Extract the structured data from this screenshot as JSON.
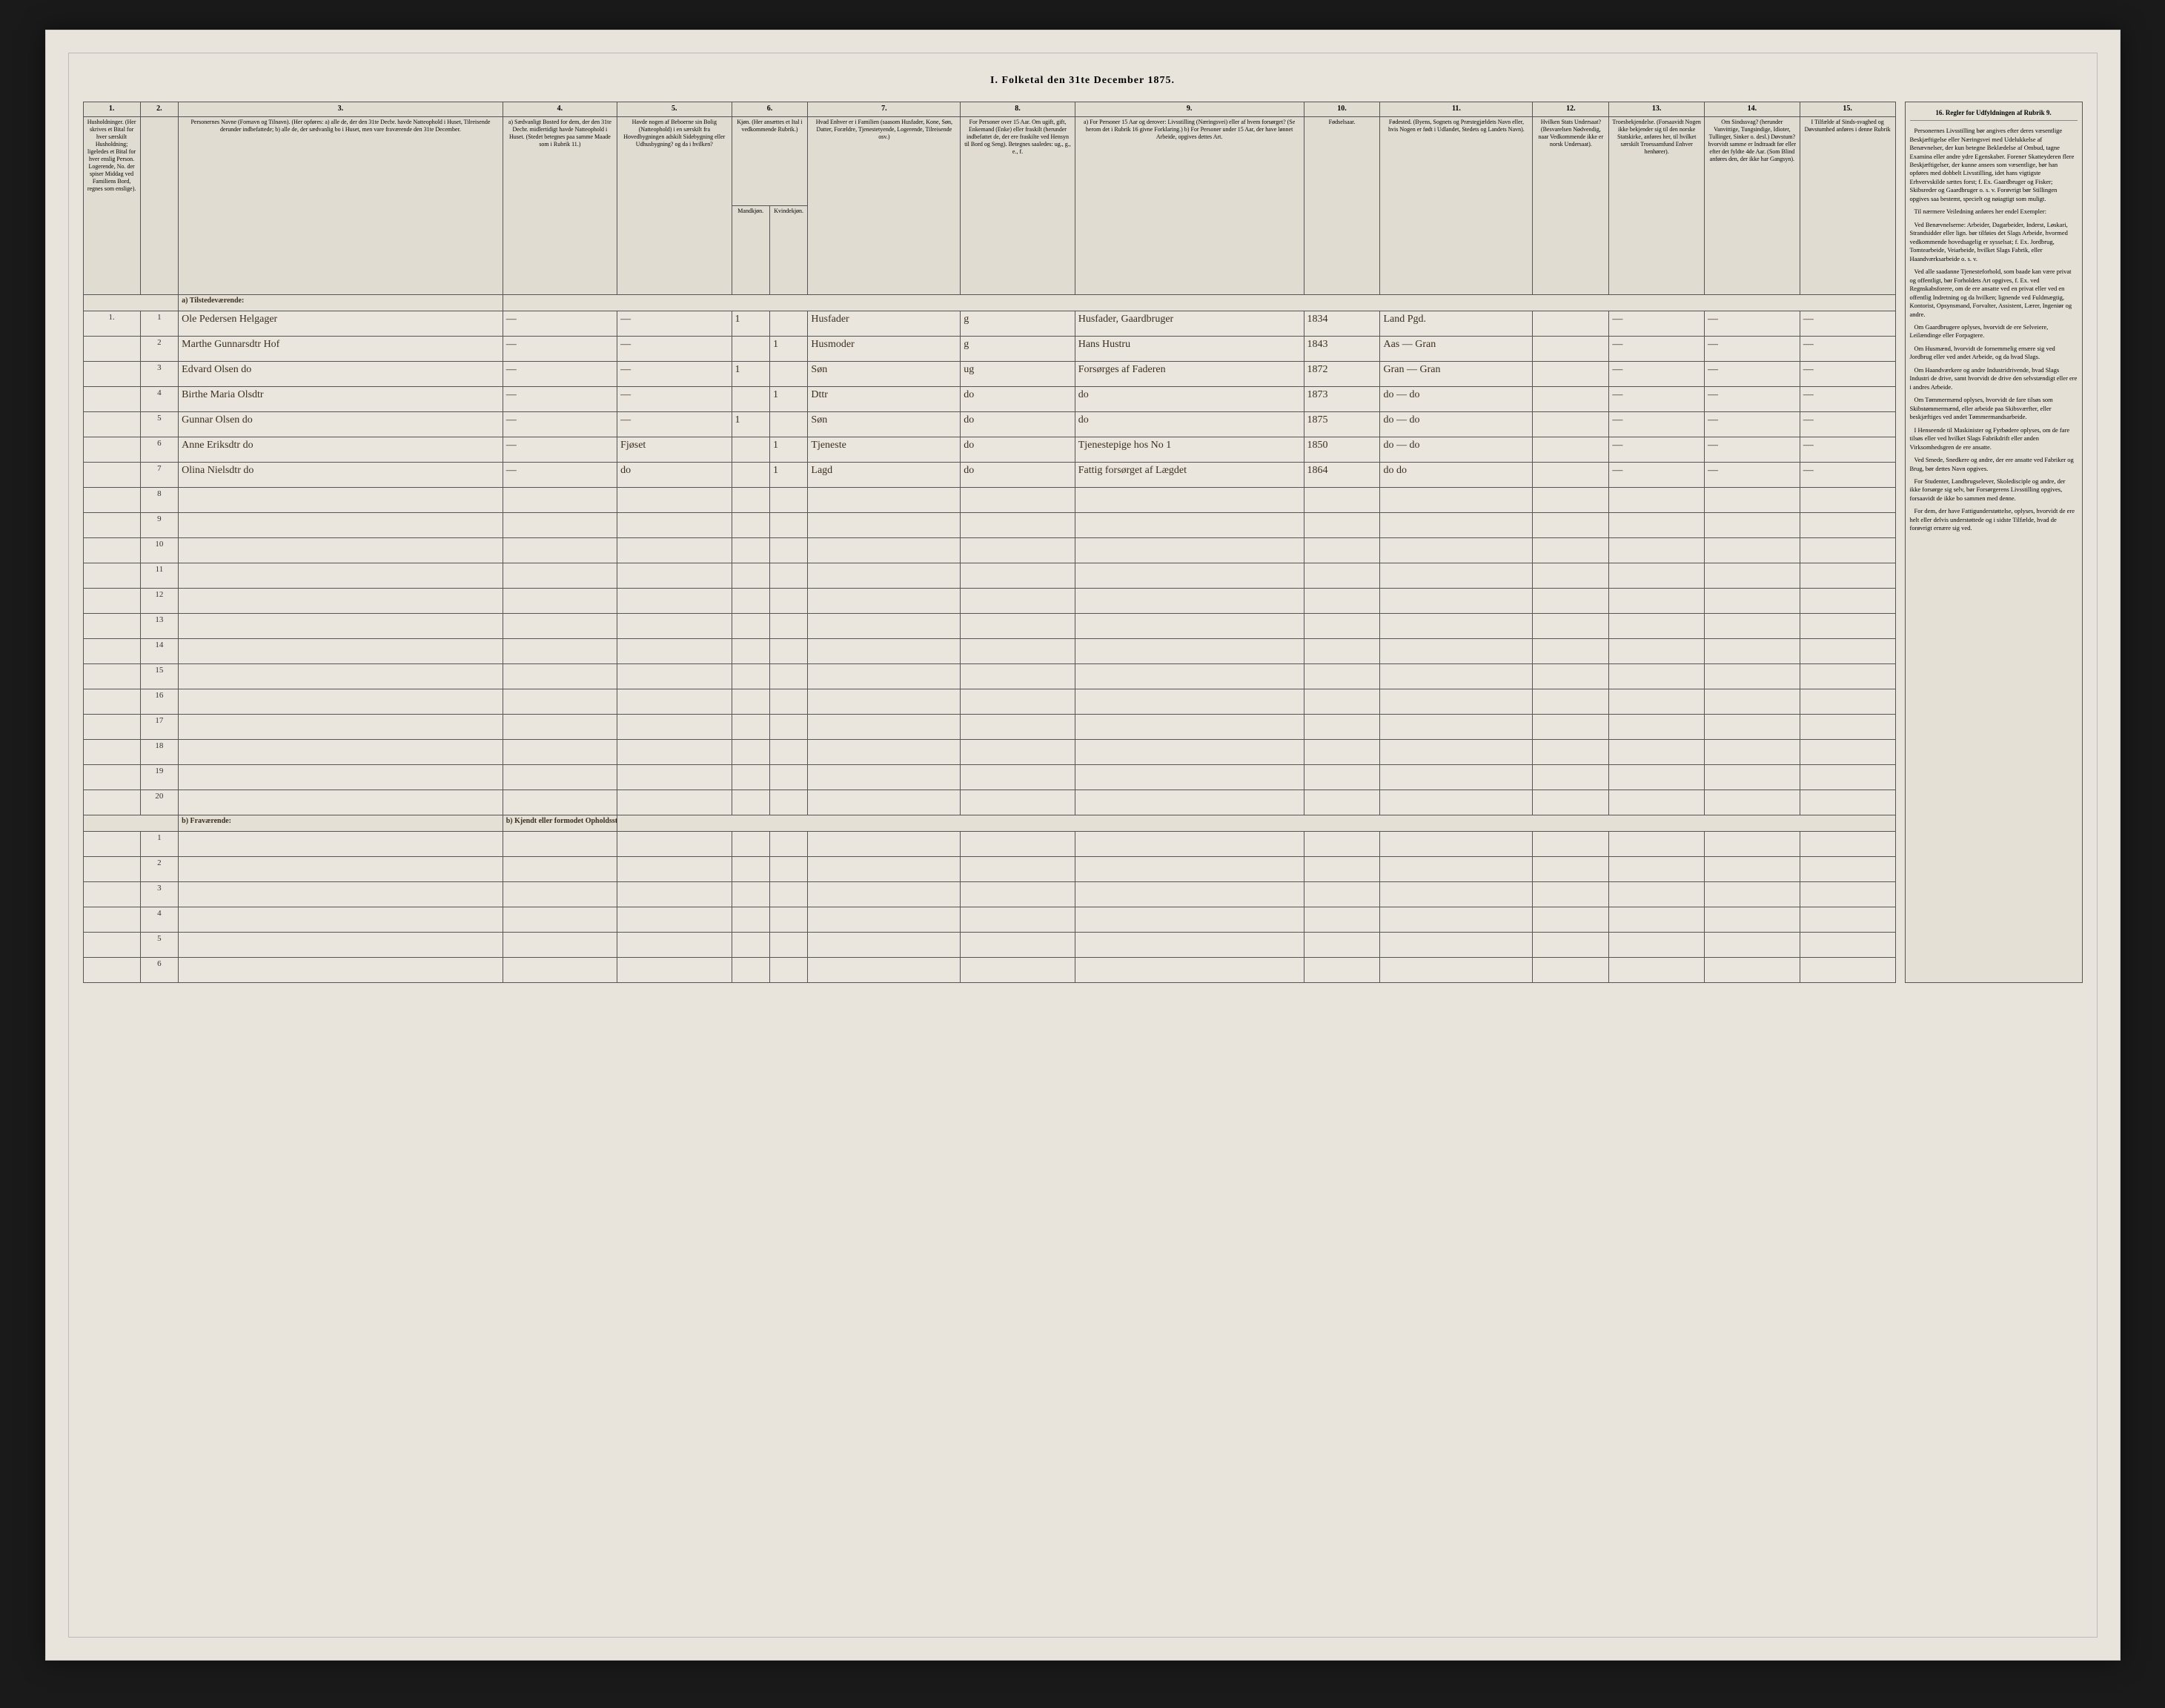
{
  "title": "I. Folketal den 31te December 1875.",
  "columns_numbers": [
    "1.",
    "2.",
    "3.",
    "4.",
    "5.",
    "6.",
    "7.",
    "8.",
    "9.",
    "10.",
    "11.",
    "12.",
    "13.",
    "14.",
    "15."
  ],
  "columns_headers": {
    "c1": "Husholdninger. (Her skrives et Bital for hver særskilt Husholdning; ligeledes et Bital for hver enslig Person. Logerende, No. der spiser Middag ved Familiens Bord, regnes som enslige).",
    "c2": "",
    "c3": "Personernes Navne (Fornavn og Tilnavn). (Her opføres: a) alle de, der den 31te Decbr. havde Natteophold i Huset, Tilreisende derunder indbefattede; b) alle de, der sædvanlig bo i Huset, men vare fraværende den 31te December.",
    "c4": "a) Sædvanligt Bosted for dem, der den 31te Decbr. midlertidigt havde Natteophold i Huset. (Stedet betegnes paa samme Maade som i Rubrik 11.)",
    "c5": "Havde nogen af Beboerne sin Bolig (Natteophold) i en særskilt fra Hovedbygningen adskilt Sidebygning eller Udhusbygning? og da i hvilken?",
    "c6": "Kjøn. (Her ansættes et Ital i vedkommende Rubrik.)",
    "c6a": "Mandkjøn.",
    "c6b": "Kvindekjøn.",
    "c7": "Hvad Enhver er i Familien (saasom Husfader, Kone, Søn, Datter, Forældre, Tjenestetyende, Logerende, Tilreisende osv.)",
    "c8": "For Personer over 15 Aar. Om ugift, gift, Enkemand (Enke) eller fraskilt (herunder indbefattet de, der ere fraskilte ved Hensyn til Bord og Seng). Betegnes saaledes: ug., g., e., f.",
    "c9": "a) For Personer 15 Aar og derover: Livsstilling (Næringsvei) eller af hvem forsørget? (Se herom det i Rubrik 16 givne Forklaring.) b) For Personer under 15 Aar, der have lønnet Arbeide, opgives dettes Art.",
    "c10": "Fødselsaar.",
    "c11": "Fødested. (Byens, Sognets og Præstegjældets Navn eller, hvis Nogen er født i Udlandet, Stedets og Landets Navn).",
    "c12": "Hvilken Stats Undersaat? (Besvarelsen Nødvendig, naar Vedkommende ikke er norsk Undersaat).",
    "c13": "Troesbekjendelse. (Forsaavidt Nogen ikke bekjender sig til den norske Statskirke, anføres her, til hvilket særskilt Troessamfund Enhver henhører).",
    "c14": "Om Sindssvag? (herunder Vanvittige, Tungsindige, Idioter, Tullinger, Sinker o. desl.) Døvstum? hvorvidt samme er Indtraadt før eller efter det fyldte 4de Aar. (Som Blind anføres den, der ikke har Gangsyn).",
    "c15": "I Tilfælde af Sinds-svaghed og Døvstumhed anføres i denne Rubrik"
  },
  "sidebar_title": "16. Regler for Udfyldningen af Rubrik 9.",
  "sidebar_paragraphs": [
    "Personernes Livsstilling bør angives efter deres væsentlige Beskjæftigelse eller Næringsvei med Udelukkelse af Benævnelser, der kun betegne Beklædelse af Ombud, tagne Examina eller andre ydre Egenskaber. Forener Skatteyderen flere Beskjæftigelser, der kunne ansees som væsentlige, bør han opføres med dobbelt Livsstilling, idet hans vigtigste Erhvervskilde sættes forst; f. Ex. Gaardbruger og Fisker; Skibsreder og Gaardbruger o. s. v. Forøvrigt bør Stillingen opgives saa bestemt, specielt og nøiagtigt som muligt.",
    "Til nærmere Veiledning anføres her endel Exempler:",
    "Ved Benævnelserne: Arbeider, Dagarbeider, Inderst, Løskari, Strandsidder eller lign. bør tilføies det Slags Arbeide, hvormed vedkommende hovedsagelig er sysselsat; f. Ex. Jordbrug, Tomtearbeide, Veiarbeide, hvilket Slags Fabrik, eller Haandværksarbeide o. s. v.",
    "Ved alle saadanne Tjenesteforhold, som baade kan være privat og offentligt, bør Forholdets Art opgives, f. Ex. ved Regnskabsforere, om de ere ansatte ved en privat eller ved en offentlig Indretning og da hvilken; lignende ved Fuldmægtig, Kontorist, Opsynsmand, Forvalter, Assistent, Lærer, Ingeniør og andre.",
    "Om Gaardbrugere oplyses, hvorvidt de ere Selveiere, Leilændinge eller Forpagtere.",
    "Om Husmænd, hvorvidt de fornemmelig ernære sig ved Jordbrug eller ved andet Arbeide, og da hvad Slags.",
    "Om Haandværkere og andre Industridrivende, hvad Slags Industri de drive, samt hvorvidt de drive den selvstændigt eller ere i andres Arbeide.",
    "Om Tømmermænd oplyses, hvorvidt de fare tilsøs som Skibstømmermænd, eller arbeide paa Skibsværfter, eller beskjæftiges ved andet Tømmermandsarbeide.",
    "I Henseende til Maskinister og Fyrbødere oplyses, om de fare tilsøs eller ved hvilket Slags Fabrikdrift eller anden Virksomhedsgren de ere ansatte.",
    "Ved Smede, Snedkere og andre, der ere ansatte ved Fabriker og Brug, bør dettes Navn opgives.",
    "For Studenter, Landbrugselever, Skoledisciple og andre, der ikke forsørge sig selv, bør Forsørgerens Livsstilling opgives, forsaavidt de ikke bo sammen med denne.",
    "For dem, der have Fattigunderstøttelse, oplyses, hvorvidt de ere helt eller delvis understøttede og i sidste Tilfælde, hvad de forøvrigt ernære sig ved."
  ],
  "section_a": "a) Tilstedeværende:",
  "section_b": "b) Fraværende:",
  "section_b_col4": "b) Kjendt eller formodet Opholdssted.",
  "rows_a": [
    {
      "n1": "1.",
      "n2": "1",
      "name": "Ole Pedersen Helgager",
      "c4": "—",
      "c5": "—",
      "m": "1",
      "k": "",
      "rel": "Husfader",
      "ms": "g",
      "occ": "Husfader, Gaardbruger",
      "yr": "1834",
      "bp": "Land Pgd.",
      "st": "",
      "tr": "—",
      "s": "—",
      "d": "—"
    },
    {
      "n1": "",
      "n2": "2",
      "name": "Marthe Gunnarsdtr Hof",
      "c4": "—",
      "c5": "—",
      "m": "",
      "k": "1",
      "rel": "Husmoder",
      "ms": "g",
      "occ": "Hans Hustru",
      "yr": "1843",
      "bp": "Aas — Gran",
      "st": "",
      "tr": "—",
      "s": "—",
      "d": "—"
    },
    {
      "n1": "",
      "n2": "3",
      "name": "Edvard Olsen          do",
      "c4": "—",
      "c5": "—",
      "m": "1",
      "k": "",
      "rel": "Søn",
      "ms": "ug",
      "occ": "Forsørges af Faderen",
      "yr": "1872",
      "bp": "Gran — Gran",
      "st": "",
      "tr": "—",
      "s": "—",
      "d": "—"
    },
    {
      "n1": "",
      "n2": "4",
      "name": "Birthe Maria Olsdtr",
      "c4": "—",
      "c5": "—",
      "m": "",
      "k": "1",
      "rel": "Dttr",
      "ms": "do",
      "occ": "do",
      "yr": "1873",
      "bp": "do — do",
      "st": "",
      "tr": "—",
      "s": "—",
      "d": "—"
    },
    {
      "n1": "",
      "n2": "5",
      "name": "Gunnar Olsen       do",
      "c4": "—",
      "c5": "—",
      "m": "1",
      "k": "",
      "rel": "Søn",
      "ms": "do",
      "occ": "do",
      "yr": "1875",
      "bp": "do — do",
      "st": "",
      "tr": "—",
      "s": "—",
      "d": "—"
    },
    {
      "n1": "",
      "n2": "6",
      "name": "Anne Eriksdtr        do",
      "c4": "—",
      "c5": "Fjøset",
      "m": "",
      "k": "1",
      "rel": "Tjeneste",
      "ms": "do",
      "occ": "Tjenestepige hos No 1",
      "yr": "1850",
      "bp": "do — do",
      "st": "",
      "tr": "—",
      "s": "—",
      "d": "—"
    },
    {
      "n1": "",
      "n2": "7",
      "name": "Olina Nielsdtr        do",
      "c4": "—",
      "c5": "do",
      "m": "",
      "k": "1",
      "rel": "Lagd",
      "ms": "do",
      "occ": "Fattig forsørget af Lægdet",
      "yr": "1864",
      "bp": "do    do",
      "st": "",
      "tr": "—",
      "s": "—",
      "d": "—"
    }
  ],
  "blank_a": [
    "8",
    "9",
    "10",
    "11",
    "12",
    "13",
    "14",
    "15",
    "16",
    "17",
    "18",
    "19",
    "20"
  ],
  "blank_b": [
    "1",
    "2",
    "3",
    "4",
    "5",
    "6"
  ]
}
